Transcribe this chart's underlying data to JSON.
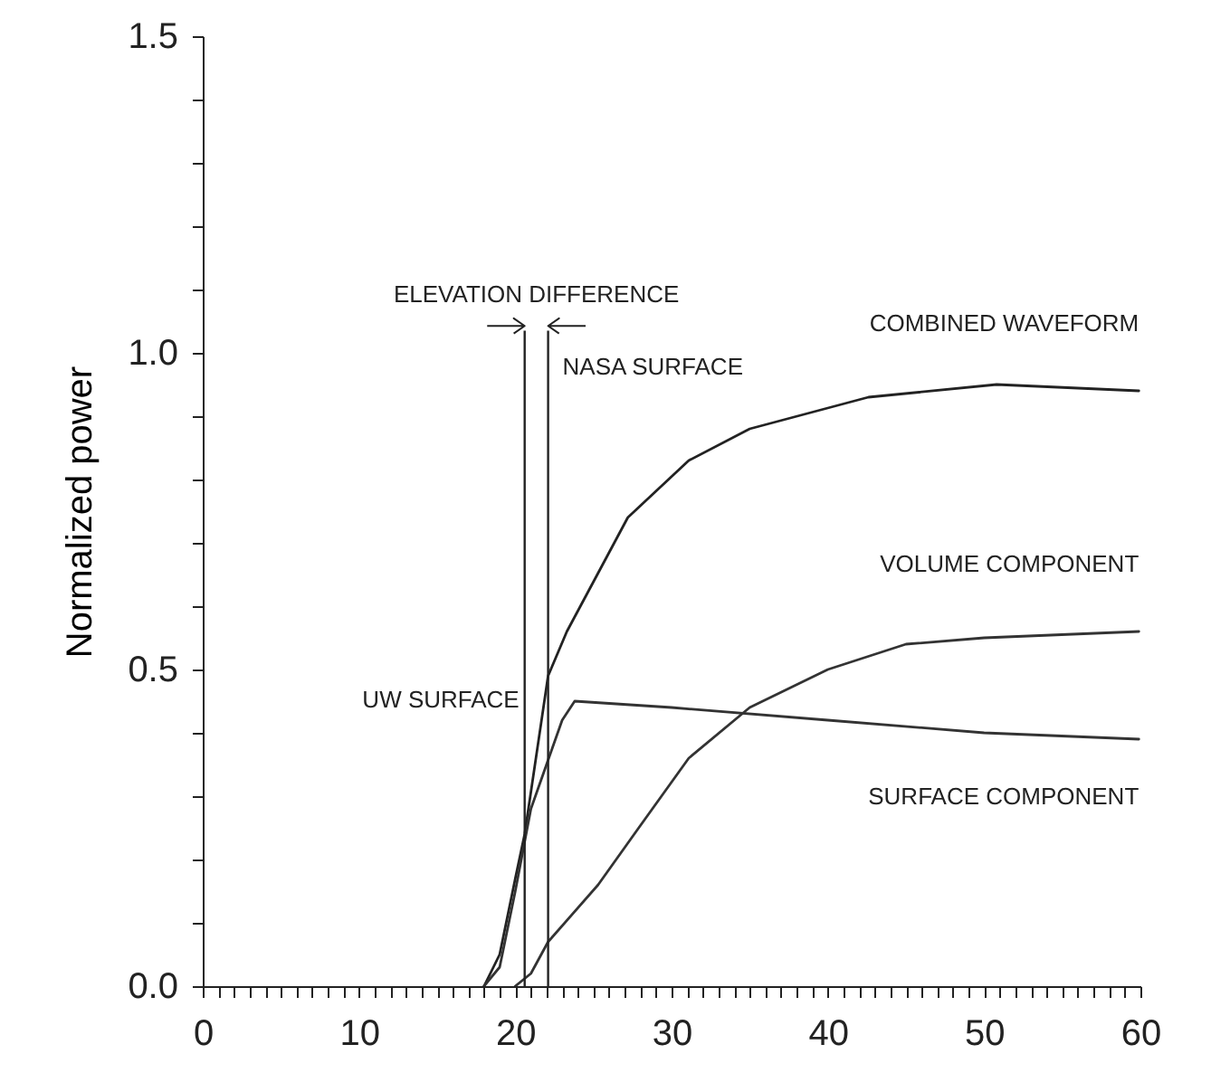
{
  "chart_data": {
    "type": "line",
    "ylabel": "Normalized power",
    "xlim": [
      0,
      60
    ],
    "ylim": [
      0,
      1.5
    ],
    "xticks": [
      0,
      {
        "value": 1,
        "label": null
      },
      {
        "value": 2,
        "label": null
      },
      {
        "value": 3,
        "label": null
      },
      {
        "value": 4,
        "label": null
      },
      {
        "value": 5,
        "label": null
      },
      {
        "value": 6,
        "label": null
      },
      {
        "value": 7,
        "label": null
      },
      {
        "value": 8,
        "label": null
      },
      {
        "value": 9,
        "label": null
      },
      10,
      {
        "value": 11,
        "label": null
      },
      {
        "value": 12,
        "label": null
      },
      {
        "value": 13,
        "label": null
      },
      {
        "value": 14,
        "label": null
      },
      {
        "value": 15,
        "label": null
      },
      {
        "value": 16,
        "label": null
      },
      {
        "value": 17,
        "label": null
      },
      {
        "value": 18,
        "label": null
      },
      {
        "value": 19,
        "label": null
      },
      20,
      {
        "value": 21,
        "label": null
      },
      {
        "value": 22,
        "label": null
      },
      {
        "value": 23,
        "label": null
      },
      {
        "value": 24,
        "label": null
      },
      {
        "value": 25,
        "label": null
      },
      {
        "value": 26,
        "label": null
      },
      {
        "value": 27,
        "label": null
      },
      {
        "value": 28,
        "label": null
      },
      {
        "value": 29,
        "label": null
      },
      30,
      {
        "value": 31,
        "label": null
      },
      {
        "value": 32,
        "label": null
      },
      {
        "value": 33,
        "label": null
      },
      {
        "value": 34,
        "label": null
      },
      {
        "value": 35,
        "label": null
      },
      {
        "value": 36,
        "label": null
      },
      {
        "value": 37,
        "label": null
      },
      {
        "value": 38,
        "label": null
      },
      {
        "value": 39,
        "label": null
      },
      40,
      {
        "value": 41,
        "label": null
      },
      {
        "value": 42,
        "label": null
      },
      {
        "value": 43,
        "label": null
      },
      {
        "value": 44,
        "label": null
      },
      {
        "value": 45,
        "label": null
      },
      {
        "value": 46,
        "label": null
      },
      {
        "value": 47,
        "label": null
      },
      {
        "value": 48,
        "label": null
      },
      {
        "value": 49,
        "label": null
      },
      50,
      {
        "value": 51,
        "label": null
      },
      {
        "value": 52,
        "label": null
      },
      {
        "value": 53,
        "label": null
      },
      {
        "value": 54,
        "label": null
      },
      {
        "value": 55,
        "label": null
      },
      {
        "value": 56,
        "label": null
      },
      {
        "value": 57,
        "label": null
      },
      {
        "value": 58,
        "label": null
      },
      {
        "value": 59,
        "label": null
      },
      60
    ],
    "yticks": [
      {
        "value": 0,
        "label": "0.0"
      },
      {
        "value": 0.1,
        "label": null
      },
      {
        "value": 0.2,
        "label": null
      },
      {
        "value": 0.3,
        "label": null
      },
      {
        "value": 0.4,
        "label": null
      },
      {
        "value": 0.5,
        "label": "0.5"
      },
      {
        "value": 0.6,
        "label": null
      },
      {
        "value": 0.7,
        "label": null
      },
      {
        "value": 0.8,
        "label": null
      },
      {
        "value": 0.9,
        "label": null
      },
      {
        "value": 1.0,
        "label": "1.0"
      },
      {
        "value": 1.1,
        "label": null
      },
      {
        "value": 1.2,
        "label": null
      },
      {
        "value": 1.3,
        "label": null
      },
      {
        "value": 1.4,
        "label": null
      },
      {
        "value": 1.5,
        "label": "1.5"
      }
    ],
    "grid": false,
    "marker": "none",
    "line_style": "solid",
    "series": [
      {
        "name": "COMBINED WAVEFORM",
        "color": "#222222",
        "x": [
          18,
          19,
          20,
          20.6,
          22.1,
          23.3,
          27.2,
          31.1,
          35,
          42.6,
          50.8,
          59.9
        ],
        "values": [
          0,
          0.05,
          0.17,
          0.24,
          0.49,
          0.56,
          0.74,
          0.83,
          0.88,
          0.93,
          0.95,
          0.94
        ]
      },
      {
        "name": "VOLUME COMPONENT",
        "color": "#333333",
        "x": [
          20,
          21,
          22.1,
          25.3,
          27.9,
          31.1,
          35,
          40,
          45,
          50,
          59.9
        ],
        "values": [
          0,
          0.02,
          0.07,
          0.16,
          0.25,
          0.36,
          0.44,
          0.5,
          0.54,
          0.55,
          0.56
        ]
      },
      {
        "name": "SURFACE COMPONENT",
        "color": "#333333",
        "x": [
          18,
          19,
          20,
          21,
          22,
          23,
          23.8,
          30,
          40,
          50,
          59.9
        ],
        "values": [
          0,
          0.03,
          0.15,
          0.28,
          0.35,
          0.42,
          0.45,
          0.44,
          0.42,
          0.4,
          0.39
        ]
      }
    ],
    "ref_lines": [
      {
        "axis": "x",
        "value": 20.6,
        "label": "UW SURFACE"
      },
      {
        "axis": "x",
        "value": 22.1,
        "label": "NASA SURFACE"
      }
    ],
    "annotations": [
      "ELEVATION DIFFERENCE"
    ]
  }
}
